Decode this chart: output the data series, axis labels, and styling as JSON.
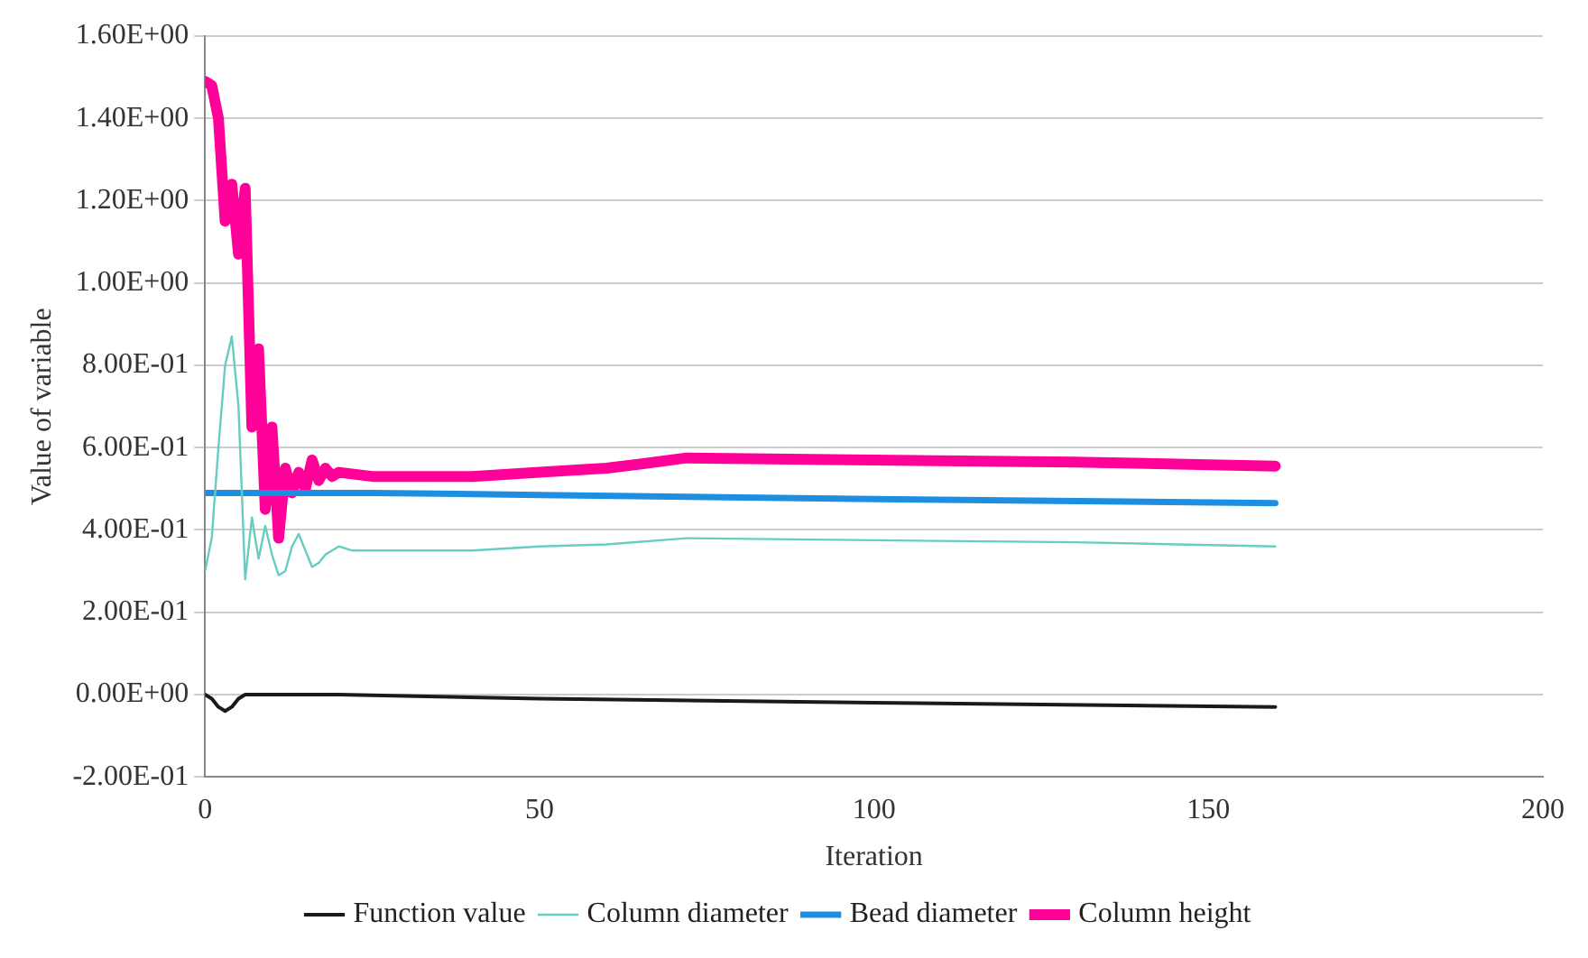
{
  "chart_data": {
    "type": "line",
    "xlabel": "Iteration",
    "ylabel": "Value of variable",
    "xlim": [
      0,
      200
    ],
    "xticks": [
      0,
      50,
      100,
      150,
      200
    ],
    "ylim": [
      -0.2,
      1.6
    ],
    "yticks": [
      {
        "value": -0.2,
        "label": "-2.00E-01"
      },
      {
        "value": 0,
        "label": "0.00E+00"
      },
      {
        "value": 0.2,
        "label": "2.00E-01"
      },
      {
        "value": 0.4,
        "label": "4.00E-01"
      },
      {
        "value": 0.6,
        "label": "6.00E-01"
      },
      {
        "value": 0.8,
        "label": "8.00E-01"
      },
      {
        "value": 1.0,
        "label": "1.00E+00"
      },
      {
        "value": 1.2,
        "label": "1.20E+00"
      },
      {
        "value": 1.4,
        "label": "1.40E+00"
      },
      {
        "value": 1.6,
        "label": "1.60E+00"
      }
    ],
    "grid": "y",
    "legend": "bottom",
    "marker": "none",
    "line_style": "solid",
    "series": [
      {
        "name": "Function value",
        "color": "#1a1a1a",
        "x": [
          0,
          1,
          2,
          3,
          4,
          5,
          6,
          8,
          10,
          20,
          50,
          100,
          160
        ],
        "values": [
          0,
          -0.01,
          -0.03,
          -0.04,
          -0.03,
          -0.01,
          0,
          0,
          0,
          0,
          -0.01,
          -0.02,
          -0.03
        ]
      },
      {
        "name": "Column diameter",
        "color": "#66cdc0",
        "x": [
          0,
          1,
          2,
          3,
          4,
          5,
          6,
          7,
          8,
          9,
          10,
          11,
          12,
          13,
          14,
          15,
          16,
          17,
          18,
          20,
          22,
          25,
          30,
          40,
          50,
          60,
          72,
          100,
          130,
          160
        ],
        "values": [
          0.3,
          0.38,
          0.6,
          0.8,
          0.87,
          0.7,
          0.28,
          0.43,
          0.33,
          0.41,
          0.34,
          0.29,
          0.3,
          0.36,
          0.39,
          0.35,
          0.31,
          0.32,
          0.34,
          0.36,
          0.35,
          0.35,
          0.35,
          0.35,
          0.36,
          0.365,
          0.38,
          0.375,
          0.37,
          0.36
        ]
      },
      {
        "name": "Bead diameter",
        "color": "#1e8fe0",
        "x": [
          0,
          25,
          50,
          100,
          160
        ],
        "values": [
          0.49,
          0.49,
          0.485,
          0.475,
          0.465
        ]
      },
      {
        "name": "Column height",
        "color": "#ff0099",
        "x": [
          0,
          1,
          2,
          3,
          4,
          5,
          6,
          7,
          8,
          9,
          10,
          11,
          12,
          13,
          14,
          15,
          16,
          17,
          18,
          19,
          20,
          25,
          30,
          40,
          50,
          60,
          65,
          72,
          100,
          130,
          160
        ],
        "values": [
          1.49,
          1.48,
          1.4,
          1.15,
          1.24,
          1.07,
          1.23,
          0.65,
          0.84,
          0.45,
          0.65,
          0.38,
          0.55,
          0.49,
          0.54,
          0.5,
          0.57,
          0.52,
          0.55,
          0.53,
          0.54,
          0.53,
          0.53,
          0.53,
          0.54,
          0.55,
          0.56,
          0.575,
          0.57,
          0.565,
          0.555
        ]
      }
    ]
  }
}
